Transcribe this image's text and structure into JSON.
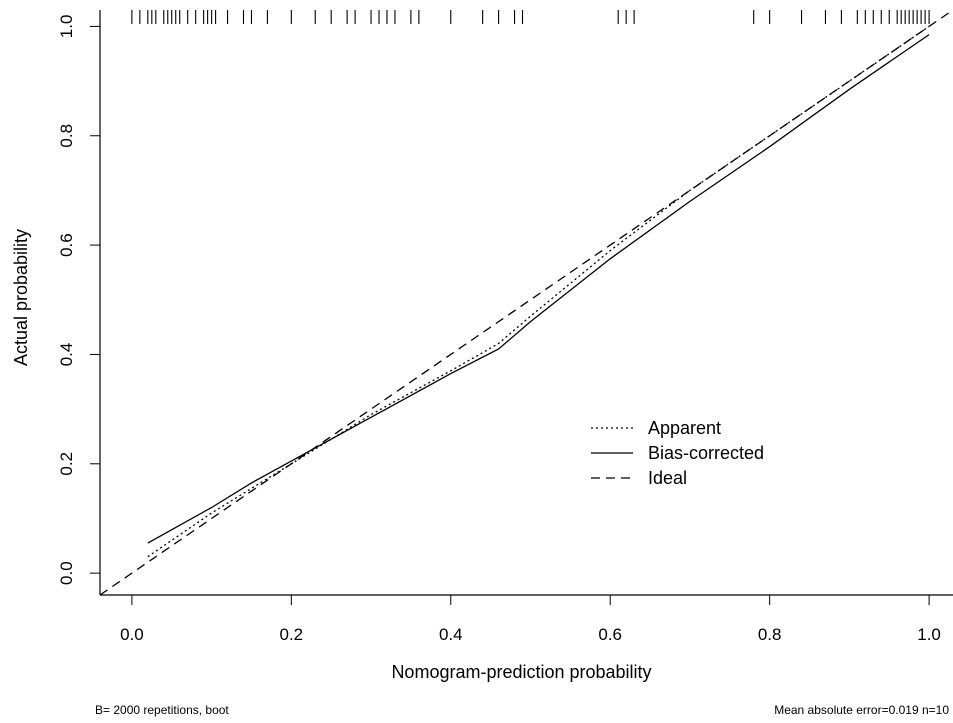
{
  "chart_data": {
    "type": "line",
    "xlabel": "Nomogram-prediction probability",
    "ylabel": "Actual probability",
    "xlim": [
      -0.04,
      1.03
    ],
    "ylim": [
      -0.04,
      1.03
    ],
    "x_ticks": [
      "0.0",
      "0.2",
      "0.4",
      "0.6",
      "0.8",
      "1.0"
    ],
    "y_ticks": [
      "0.0",
      "0.2",
      "0.4",
      "0.6",
      "0.8",
      "1.0"
    ],
    "legend_position": "center-right",
    "series": [
      {
        "name": "Apparent",
        "style": "dotted",
        "x": [
          0.02,
          0.1,
          0.2,
          0.3,
          0.4,
          0.46,
          0.5,
          0.6,
          0.7,
          0.8,
          0.9,
          1.0
        ],
        "y": [
          0.03,
          0.11,
          0.2,
          0.29,
          0.37,
          0.42,
          0.47,
          0.59,
          0.7,
          0.8,
          0.9,
          1.0
        ]
      },
      {
        "name": "Bias-corrected",
        "style": "solid",
        "x": [
          0.02,
          0.1,
          0.15,
          0.2,
          0.3,
          0.4,
          0.46,
          0.5,
          0.6,
          0.7,
          0.8,
          0.9,
          1.0
        ],
        "y": [
          0.055,
          0.12,
          0.165,
          0.205,
          0.285,
          0.365,
          0.41,
          0.46,
          0.575,
          0.68,
          0.78,
          0.885,
          0.985
        ]
      },
      {
        "name": "Ideal",
        "style": "dashed",
        "x": [
          -0.04,
          1.03
        ],
        "y": [
          -0.04,
          1.03
        ]
      }
    ],
    "rug_x": [
      0.0,
      0.01,
      0.02,
      0.025,
      0.03,
      0.04,
      0.045,
      0.05,
      0.055,
      0.06,
      0.07,
      0.08,
      0.09,
      0.095,
      0.1,
      0.105,
      0.12,
      0.14,
      0.15,
      0.17,
      0.2,
      0.23,
      0.25,
      0.27,
      0.28,
      0.3,
      0.31,
      0.32,
      0.33,
      0.35,
      0.36,
      0.4,
      0.44,
      0.46,
      0.48,
      0.49,
      0.61,
      0.62,
      0.63,
      0.78,
      0.8,
      0.84,
      0.87,
      0.89,
      0.91,
      0.92,
      0.93,
      0.94,
      0.95,
      0.96,
      0.965,
      0.97,
      0.975,
      0.98,
      0.985,
      0.99,
      0.995,
      1.0
    ],
    "grid": false
  },
  "footer": {
    "left": "B= 2000 repetitions, boot",
    "right": "Mean absolute error=0.019 n=10"
  }
}
